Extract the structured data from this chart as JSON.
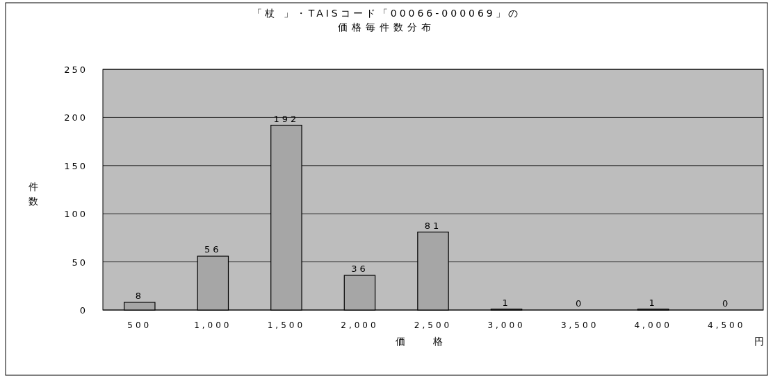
{
  "chart_data": {
    "type": "bar",
    "title": "「杖 」・TAISコード「00066-000069」の",
    "subtitle": "価格毎件数分布",
    "xlabel": "価格",
    "ylabel": "件数",
    "annotations": [
      "円"
    ],
    "categories": [
      "500",
      "1,000",
      "1,500",
      "2,000",
      "2,500",
      "3,000",
      "3,500",
      "4,000",
      "4,500"
    ],
    "values": [
      8,
      56,
      192,
      36,
      81,
      1,
      0,
      1,
      0
    ],
    "color": "#a6a6a6",
    "ylim": [
      0,
      250
    ],
    "yticks": [
      0,
      50,
      100,
      150,
      200,
      250
    ],
    "grid": "y",
    "data_labels": true
  }
}
